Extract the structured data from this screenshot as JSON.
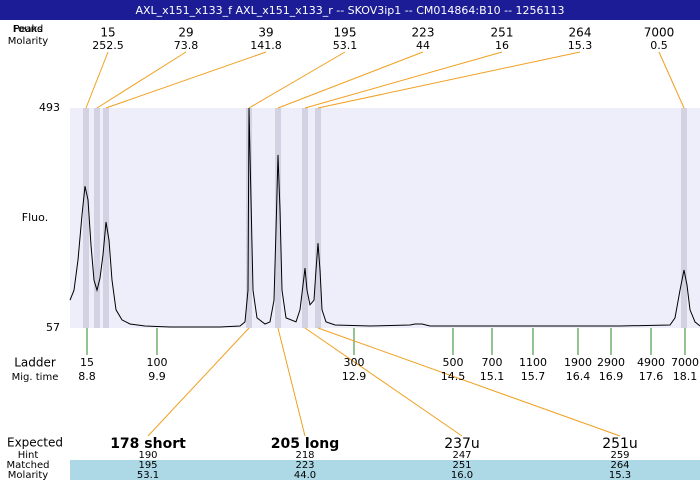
{
  "header": {
    "title": "AXL_x151_x133_f  AXL_x151_x133_r -- SKOV3ip1 -- CM014864:B10 -- 1256113"
  },
  "found_peaks": {
    "label_top": "Peaks",
    "label_top_overlap": "Found",
    "label_molarity": "Molarity",
    "sizes": [
      15,
      29,
      39,
      195,
      223,
      251,
      264,
      7000
    ],
    "molarities": [
      252.5,
      73.8,
      141.8,
      53.1,
      44,
      16,
      15.3,
      0.5
    ]
  },
  "plot": {
    "y_label": "Fluo.",
    "ylim": [
      57,
      493
    ],
    "yticks": [
      57,
      493
    ],
    "xlim": [
      0,
      630
    ],
    "trace": {
      "x": [
        0,
        4,
        8,
        12,
        15,
        18,
        21,
        24,
        27,
        30,
        33,
        36,
        39,
        42,
        46,
        52,
        60,
        75,
        100,
        150,
        170,
        175,
        178,
        179,
        181,
        183,
        187,
        195,
        200,
        204,
        206,
        208,
        210,
        212,
        216,
        226,
        230,
        233,
        235,
        237,
        240,
        244,
        246,
        248,
        250,
        252,
        256,
        265,
        300,
        340,
        345,
        352,
        360,
        450,
        550,
        600,
        605,
        610,
        614,
        617,
        620,
        625,
        630
      ],
      "y": [
        112,
        132,
        192,
        281,
        338,
        311,
        221,
        152,
        132,
        156,
        202,
        267,
        231,
        152,
        93,
        73,
        65,
        61,
        59,
        59,
        61,
        69,
        132,
        493,
        311,
        132,
        77,
        65,
        69,
        112,
        251,
        400,
        291,
        132,
        77,
        69,
        93,
        142,
        176,
        132,
        103,
        112,
        172,
        225,
        172,
        93,
        69,
        63,
        61,
        63,
        65,
        65,
        61,
        61,
        61,
        63,
        77,
        132,
        172,
        142,
        93,
        69,
        61
      ]
    }
  },
  "ladder": {
    "label": "Ladder",
    "mig_label": "Mig. time",
    "sizes": [
      15,
      100,
      300,
      500,
      700,
      1100,
      1900,
      2900,
      4900,
      7000
    ],
    "mig_times": [
      8.8,
      9.9,
      12.9,
      14.5,
      15.1,
      15.7,
      16.4,
      16.9,
      17.6,
      18.1
    ]
  },
  "expected": {
    "label": "Expected",
    "hint_label": "Hint",
    "matched_label": "Matched",
    "molarity_label": "Molarity",
    "names": [
      "178 short",
      "205 long",
      "237u",
      "251u"
    ],
    "hint": [
      "190",
      "218",
      "247",
      "259"
    ],
    "matched": [
      "195",
      "223",
      "251",
      "264"
    ],
    "molarity": [
      "53.1",
      "44.0",
      "16.0",
      "15.3"
    ]
  }
}
